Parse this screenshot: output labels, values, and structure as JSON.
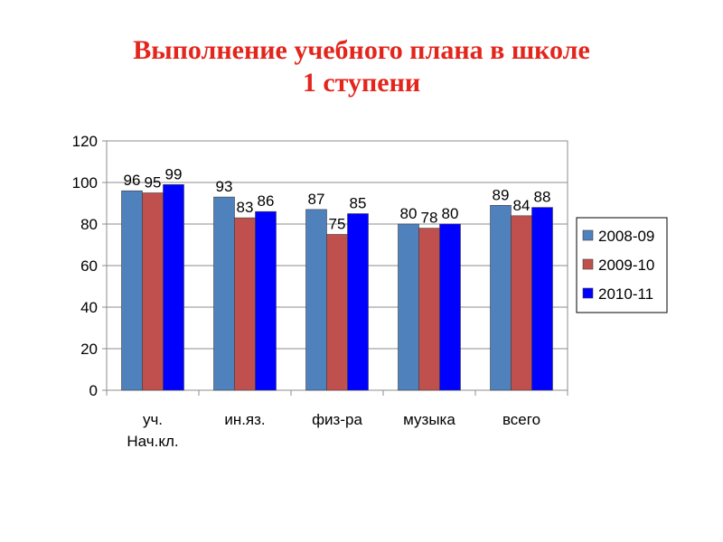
{
  "title": {
    "line1": "Выполнение учебного плана  в школе",
    "line2": "1 ступени",
    "color": "#e3251c"
  },
  "chart_data": {
    "type": "bar",
    "categories": [
      "уч. Нач.кл.",
      "ин.яз.",
      "физ-ра",
      "музыка",
      "всего"
    ],
    "category_lines": [
      [
        "уч.",
        "Нач.кл."
      ],
      [
        "ин.яз."
      ],
      [
        "физ-ра"
      ],
      [
        "музыка"
      ],
      [
        "всего"
      ]
    ],
    "series": [
      {
        "name": "2008-09",
        "values": [
          96,
          93,
          87,
          80,
          89
        ],
        "color": "#4f81bd"
      },
      {
        "name": "2009-10",
        "values": [
          95,
          83,
          75,
          78,
          84
        ],
        "color": "#c0504d"
      },
      {
        "name": "2010-11",
        "values": [
          99,
          86,
          85,
          80,
          88
        ],
        "color": "#0000ff"
      }
    ],
    "ylim": [
      0,
      120
    ],
    "yticks": [
      0,
      20,
      40,
      60,
      80,
      100,
      120
    ],
    "ytick_labels": [
      "0",
      "20",
      "40",
      "60",
      "80",
      "100",
      "120"
    ],
    "grid": true,
    "legend_position": "right"
  }
}
